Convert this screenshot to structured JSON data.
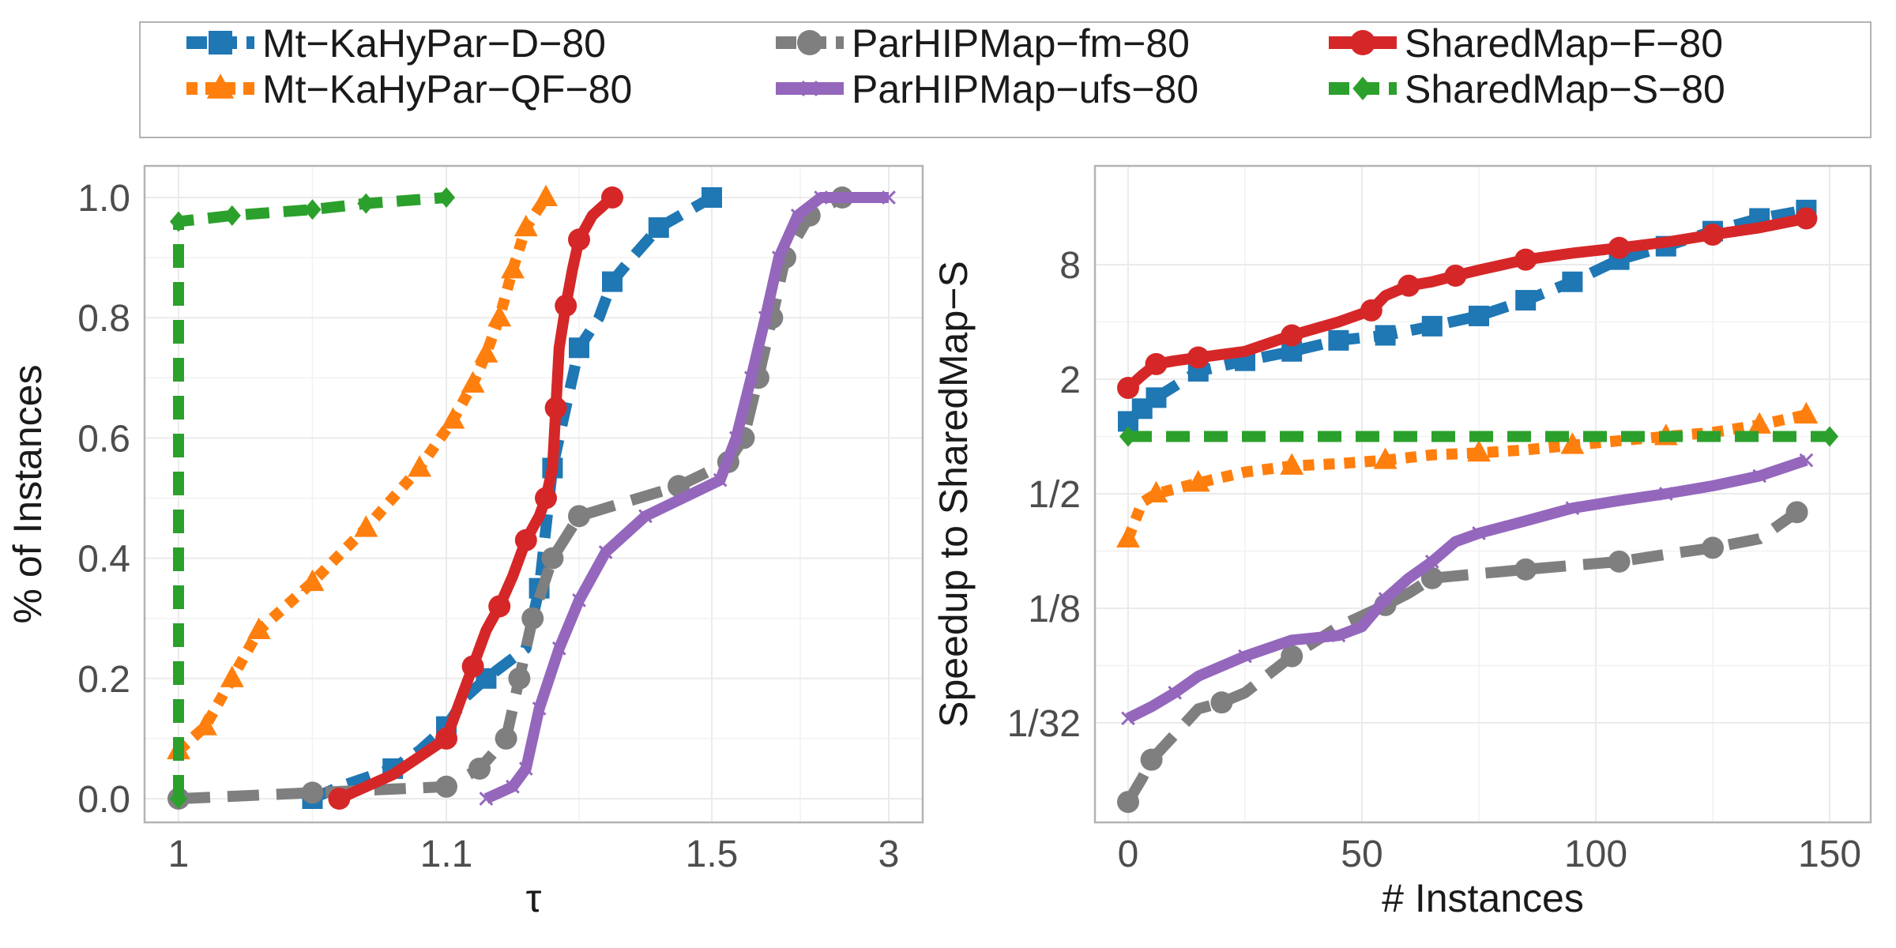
{
  "legend": {
    "entries": [
      {
        "label": "Mt−KaHyPar−D−80",
        "color": "#1f77b4",
        "marker": "square",
        "dash": "dashed"
      },
      {
        "label": "Mt−KaHyPar−QF−80",
        "color": "#ff7f0e",
        "marker": "triangle",
        "dash": "dotted"
      },
      {
        "label": "ParHIPMap−fm−80",
        "color": "#7f7f7f",
        "marker": "circle",
        "dash": "longdash"
      },
      {
        "label": "ParHIPMap−ufs−80",
        "color": "#9467bd",
        "marker": "cross",
        "dash": "solid"
      },
      {
        "label": "SharedMap−F−80",
        "color": "#d62728",
        "marker": "circle",
        "dash": "solid"
      },
      {
        "label": "SharedMap−S−80",
        "color": "#2ca02c",
        "marker": "diamond",
        "dash": "dashed"
      }
    ]
  },
  "chart_data": [
    {
      "type": "line",
      "xlabel": "τ",
      "ylabel": "% of Instances",
      "x_scale": "performance-profile",
      "xticks": [
        "1",
        "1.1",
        "1.5",
        "3"
      ],
      "xtick_values": [
        1,
        1.1,
        1.5,
        3
      ],
      "ylim": [
        0,
        1
      ],
      "yticks": [
        "0.0",
        "0.2",
        "0.4",
        "0.6",
        "0.8",
        "1.0"
      ],
      "ytick_values": [
        0,
        0.2,
        0.4,
        0.6,
        0.8,
        1.0
      ],
      "grid": true,
      "series": [
        {
          "name": "Mt−KaHyPar−D−80",
          "points": [
            [
              1.05,
              0.0
            ],
            [
              1.06,
              0.02
            ],
            [
              1.08,
              0.05
            ],
            [
              1.09,
              0.08
            ],
            [
              1.1,
              0.12
            ],
            [
              1.13,
              0.17
            ],
            [
              1.16,
              0.2
            ],
            [
              1.22,
              0.25
            ],
            [
              1.24,
              0.35
            ],
            [
              1.25,
              0.45
            ],
            [
              1.26,
              0.55
            ],
            [
              1.28,
              0.65
            ],
            [
              1.3,
              0.75
            ],
            [
              1.33,
              0.8
            ],
            [
              1.35,
              0.86
            ],
            [
              1.38,
              0.9
            ],
            [
              1.42,
              0.95
            ],
            [
              1.5,
              1.0
            ]
          ]
        },
        {
          "name": "Mt−KaHyPar−QF−80",
          "points": [
            [
              1.0,
              0.08
            ],
            [
              1.01,
              0.12
            ],
            [
              1.02,
              0.2
            ],
            [
              1.03,
              0.28
            ],
            [
              1.05,
              0.36
            ],
            [
              1.07,
              0.45
            ],
            [
              1.09,
              0.55
            ],
            [
              1.11,
              0.63
            ],
            [
              1.14,
              0.69
            ],
            [
              1.16,
              0.74
            ],
            [
              1.18,
              0.8
            ],
            [
              1.2,
              0.88
            ],
            [
              1.22,
              0.95
            ],
            [
              1.25,
              1.0
            ]
          ]
        },
        {
          "name": "ParHIPMap−fm−80",
          "points": [
            [
              1.0,
              0.0
            ],
            [
              1.05,
              0.01
            ],
            [
              1.1,
              0.02
            ],
            [
              1.15,
              0.05
            ],
            [
              1.19,
              0.1
            ],
            [
              1.21,
              0.2
            ],
            [
              1.23,
              0.3
            ],
            [
              1.26,
              0.4
            ],
            [
              1.3,
              0.47
            ],
            [
              1.45,
              0.52
            ],
            [
              1.6,
              0.56
            ],
            [
              1.7,
              0.6
            ],
            [
              1.8,
              0.7
            ],
            [
              1.9,
              0.8
            ],
            [
              2.0,
              0.9
            ],
            [
              2.2,
              0.97
            ],
            [
              2.5,
              1.0
            ]
          ]
        },
        {
          "name": "ParHIPMap−ufs−80",
          "points": [
            [
              1.16,
              0.0
            ],
            [
              1.2,
              0.02
            ],
            [
              1.22,
              0.05
            ],
            [
              1.24,
              0.15
            ],
            [
              1.27,
              0.25
            ],
            [
              1.3,
              0.33
            ],
            [
              1.34,
              0.41
            ],
            [
              1.4,
              0.47
            ],
            [
              1.55,
              0.53
            ],
            [
              1.65,
              0.6
            ],
            [
              1.75,
              0.7
            ],
            [
              1.85,
              0.8
            ],
            [
              1.95,
              0.9
            ],
            [
              2.1,
              0.97
            ],
            [
              2.3,
              1.0
            ],
            [
              3.0,
              1.0
            ]
          ]
        },
        {
          "name": "SharedMap−F−80",
          "points": [
            [
              1.06,
              0.0
            ],
            [
              1.08,
              0.04
            ],
            [
              1.1,
              0.1
            ],
            [
              1.12,
              0.16
            ],
            [
              1.14,
              0.22
            ],
            [
              1.16,
              0.28
            ],
            [
              1.18,
              0.32
            ],
            [
              1.2,
              0.37
            ],
            [
              1.22,
              0.43
            ],
            [
              1.24,
              0.47
            ],
            [
              1.25,
              0.5
            ],
            [
              1.26,
              0.55
            ],
            [
              1.265,
              0.65
            ],
            [
              1.27,
              0.75
            ],
            [
              1.28,
              0.82
            ],
            [
              1.29,
              0.88
            ],
            [
              1.3,
              0.93
            ],
            [
              1.32,
              0.97
            ],
            [
              1.35,
              1.0
            ]
          ]
        },
        {
          "name": "SharedMap−S−80",
          "points": [
            [
              1.0,
              0.0
            ],
            [
              1.0,
              0.96
            ],
            [
              1.02,
              0.97
            ],
            [
              1.05,
              0.98
            ],
            [
              1.07,
              0.99
            ],
            [
              1.1,
              1.0
            ]
          ]
        }
      ]
    },
    {
      "type": "line",
      "xlabel": "# Instances",
      "ylabel": "Speedup to SharedMap−S",
      "xlim": [
        0,
        150
      ],
      "xticks": [
        "0",
        "50",
        "100",
        "150"
      ],
      "xtick_values": [
        0,
        50,
        100,
        150
      ],
      "y_scale": "log2",
      "yticks": [
        "1/32",
        "1/8",
        "1/2",
        "2",
        "8"
      ],
      "ytick_values": [
        0.03125,
        0.125,
        0.5,
        2,
        8
      ],
      "grid": true,
      "series": [
        {
          "name": "Mt−KaHyPar−D−80",
          "points": [
            [
              0,
              1.2
            ],
            [
              3,
              1.4
            ],
            [
              6,
              1.6
            ],
            [
              15,
              2.2
            ],
            [
              25,
              2.5
            ],
            [
              35,
              2.8
            ],
            [
              45,
              3.2
            ],
            [
              55,
              3.4
            ],
            [
              65,
              3.8
            ],
            [
              75,
              4.3
            ],
            [
              85,
              5.2
            ],
            [
              95,
              6.5
            ],
            [
              105,
              8.5
            ],
            [
              115,
              10
            ],
            [
              125,
              12
            ],
            [
              135,
              14
            ],
            [
              145,
              15.5
            ]
          ]
        },
        {
          "name": "Mt−KaHyPar−QF−80",
          "points": [
            [
              0,
              0.29
            ],
            [
              3,
              0.45
            ],
            [
              6,
              0.5
            ],
            [
              10,
              0.53
            ],
            [
              15,
              0.57
            ],
            [
              25,
              0.65
            ],
            [
              35,
              0.7
            ],
            [
              45,
              0.72
            ],
            [
              55,
              0.75
            ],
            [
              65,
              0.8
            ],
            [
              75,
              0.82
            ],
            [
              85,
              0.85
            ],
            [
              95,
              0.9
            ],
            [
              105,
              0.95
            ],
            [
              115,
              1.0
            ],
            [
              125,
              1.05
            ],
            [
              135,
              1.15
            ],
            [
              145,
              1.3
            ]
          ]
        },
        {
          "name": "ParHIPMap−fm−80",
          "points": [
            [
              0,
              0.012
            ],
            [
              3,
              0.016
            ],
            [
              5,
              0.02
            ],
            [
              15,
              0.037
            ],
            [
              20,
              0.04
            ],
            [
              25,
              0.045
            ],
            [
              35,
              0.07
            ],
            [
              45,
              0.1
            ],
            [
              55,
              0.13
            ],
            [
              60,
              0.15
            ],
            [
              65,
              0.18
            ],
            [
              75,
              0.19
            ],
            [
              85,
              0.2
            ],
            [
              95,
              0.21
            ],
            [
              105,
              0.22
            ],
            [
              115,
              0.24
            ],
            [
              125,
              0.26
            ],
            [
              135,
              0.29
            ],
            [
              143,
              0.4
            ]
          ]
        },
        {
          "name": "ParHIPMap−ufs−80",
          "points": [
            [
              0,
              0.033
            ],
            [
              5,
              0.038
            ],
            [
              10,
              0.045
            ],
            [
              15,
              0.055
            ],
            [
              25,
              0.07
            ],
            [
              35,
              0.085
            ],
            [
              45,
              0.09
            ],
            [
              50,
              0.1
            ],
            [
              55,
              0.14
            ],
            [
              60,
              0.18
            ],
            [
              65,
              0.22
            ],
            [
              70,
              0.28
            ],
            [
              75,
              0.31
            ],
            [
              85,
              0.36
            ],
            [
              95,
              0.42
            ],
            [
              105,
              0.46
            ],
            [
              115,
              0.5
            ],
            [
              125,
              0.55
            ],
            [
              135,
              0.62
            ],
            [
              145,
              0.75
            ]
          ]
        },
        {
          "name": "SharedMap−F−80",
          "points": [
            [
              0,
              1.8
            ],
            [
              3,
              2.1
            ],
            [
              6,
              2.4
            ],
            [
              10,
              2.5
            ],
            [
              15,
              2.6
            ],
            [
              25,
              2.8
            ],
            [
              35,
              3.4
            ],
            [
              45,
              4.0
            ],
            [
              52,
              4.6
            ],
            [
              55,
              5.5
            ],
            [
              60,
              6.2
            ],
            [
              65,
              6.5
            ],
            [
              70,
              7.0
            ],
            [
              75,
              7.5
            ],
            [
              85,
              8.5
            ],
            [
              95,
              9.2
            ],
            [
              105,
              9.8
            ],
            [
              115,
              10.5
            ],
            [
              125,
              11.5
            ],
            [
              135,
              12.5
            ],
            [
              145,
              14
            ]
          ]
        },
        {
          "name": "SharedMap−S−80",
          "points": [
            [
              0,
              1.0
            ],
            [
              150,
              1.0
            ]
          ]
        }
      ]
    }
  ]
}
